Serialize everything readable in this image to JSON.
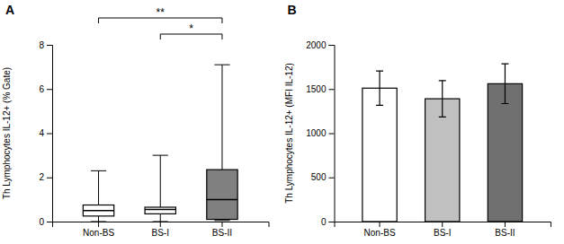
{
  "chart_data": [
    {
      "type": "box",
      "title": "A",
      "ylabel": "Th Lymphocytes IL-12+ (% Gate)",
      "categories": [
        "Non-BS",
        "BS-I",
        "BS-II"
      ],
      "colors": [
        "white",
        "white",
        "#808080"
      ],
      "medians": [
        0.5,
        0.55,
        1.0
      ],
      "q1": [
        0.25,
        0.35,
        0.1
      ],
      "q3": [
        0.75,
        0.65,
        2.35
      ],
      "whisker_low": [
        0.0,
        0.0,
        0.05
      ],
      "whisker_high": [
        2.3,
        3.0,
        7.1
      ],
      "ylim": [
        0,
        8
      ],
      "yticks": [
        0,
        2,
        4,
        6,
        8
      ],
      "grid": false,
      "annotations": [
        {
          "from": "Non-BS",
          "to": "BS-II",
          "label": "**"
        },
        {
          "from": "BS-I",
          "to": "BS-II",
          "label": "*"
        }
      ]
    },
    {
      "type": "bar",
      "title": "B",
      "ylabel": "Th Lymphocytes IL-12+ (MFI IL-12)",
      "categories": [
        "Non-BS",
        "BS-I",
        "BS-II"
      ],
      "colors": [
        "white",
        "#c0c0c0",
        "#707070"
      ],
      "values": [
        1510,
        1390,
        1560
      ],
      "errors": [
        195,
        205,
        225
      ],
      "ylim": [
        0,
        2000
      ],
      "yticks": [
        0,
        500,
        1000,
        1500,
        2000
      ],
      "grid": false
    }
  ]
}
